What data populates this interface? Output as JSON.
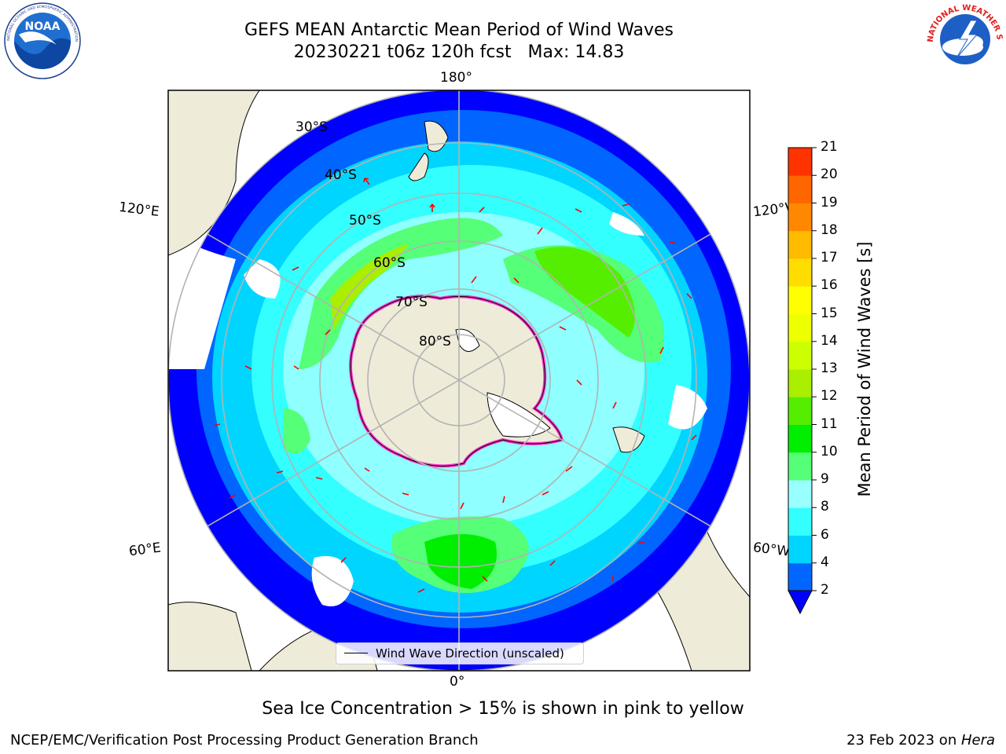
{
  "title": {
    "line1": "GEFS MEAN Antarctic Mean Period of Wind Waves",
    "line2": "20230221 t06z 120h fcst   Max: 14.83"
  },
  "logos": {
    "left": "NOAA",
    "right": "NATIONAL WEATHER SERVICE",
    "left_ring_text": "NATIONAL OCEANIC AND ATMOSPHERIC ADMINISTRATION · U.S. DEPARTMENT OF COMMERCE"
  },
  "map": {
    "projection": "south polar stereographic",
    "longitude_labels": [
      "180°",
      "120°E",
      "120°W",
      "60°E",
      "60°W",
      "0°"
    ],
    "latitude_labels": [
      "30°S",
      "40°S",
      "50°S",
      "60°S",
      "70°S",
      "80°S"
    ],
    "legend": "Wind Wave Direction (unscaled)",
    "colors": {
      "land": "#efebd9",
      "gridline": "#b3b3b3",
      "arrows": "#ff0000",
      "sea_ice_edge": "#ff33cc"
    }
  },
  "colorbar": {
    "label": "Mean Period of Wind Waves [s]",
    "ticks": [
      "2",
      "4",
      "6",
      "8",
      "9",
      "10",
      "11",
      "12",
      "13",
      "14",
      "15",
      "16",
      "17",
      "18",
      "19",
      "20",
      "21"
    ],
    "colors": [
      "#0066ff",
      "#00d5ff",
      "#33ffff",
      "#99ffff",
      "#55ff77",
      "#00ee00",
      "#55ee00",
      "#aaee00",
      "#ccff00",
      "#eeff00",
      "#ffff00",
      "#ffdd00",
      "#ffbb00",
      "#ff8800",
      "#ff6600",
      "#ff3300"
    ],
    "extend_color": "#0000ff"
  },
  "note": "Sea Ice Concentration > 15% is shown in pink to yellow",
  "footer": {
    "left": "NCEP/EMC/Verification Post Processing Product Generation Branch",
    "right_date": "23 Feb 2023 on ",
    "right_host": "Hera"
  }
}
